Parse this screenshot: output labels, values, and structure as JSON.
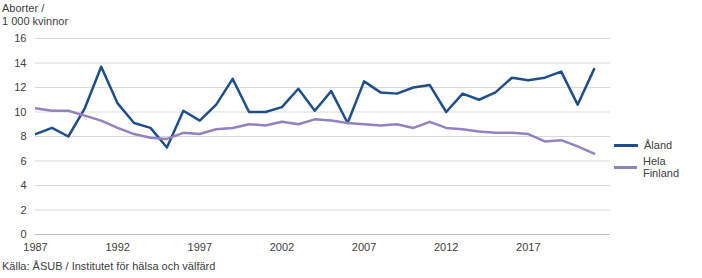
{
  "chart_data": {
    "type": "line",
    "ylabel": "Aborter /\n1 000 kvinnor",
    "caption": "Källa: ÅSUB / Institutet för hälsa och välfärd",
    "x": [
      1987,
      1988,
      1989,
      1990,
      1991,
      1992,
      1993,
      1994,
      1995,
      1996,
      1997,
      1998,
      1999,
      2000,
      2001,
      2002,
      2003,
      2004,
      2005,
      2006,
      2007,
      2008,
      2009,
      2010,
      2011,
      2012,
      2013,
      2014,
      2015,
      2016,
      2017,
      2018,
      2019,
      2020,
      2021
    ],
    "series": [
      {
        "name": "Åland",
        "color": "#1f4e8c",
        "values": [
          8.2,
          8.7,
          8.0,
          10.3,
          13.7,
          10.7,
          9.1,
          8.7,
          7.1,
          10.1,
          9.3,
          10.6,
          12.7,
          10.0,
          10.0,
          10.4,
          11.9,
          10.1,
          11.7,
          9.1,
          12.5,
          11.6,
          11.5,
          12.0,
          12.2,
          10.0,
          11.5,
          11.0,
          11.6,
          12.8,
          12.6,
          12.8,
          13.3,
          10.6,
          13.5
        ]
      },
      {
        "name": "Hela Finland",
        "color": "#9481c0",
        "values": [
          10.3,
          10.1,
          10.1,
          9.7,
          9.3,
          8.7,
          8.2,
          7.9,
          7.8,
          8.3,
          8.2,
          8.6,
          8.7,
          9.0,
          8.9,
          9.2,
          9.0,
          9.4,
          9.3,
          9.1,
          9.0,
          8.9,
          9.0,
          8.7,
          9.2,
          8.7,
          8.6,
          8.4,
          8.3,
          8.3,
          8.2,
          7.6,
          7.7,
          7.2,
          6.6
        ]
      }
    ],
    "xlim": [
      1987,
      2022
    ],
    "xticks": [
      1987,
      1992,
      1997,
      2002,
      2007,
      2012,
      2017
    ],
    "ylim": [
      0,
      16
    ],
    "yticks": [
      0,
      2,
      4,
      6,
      8,
      10,
      12,
      14,
      16
    ],
    "grid": true,
    "legend": "right"
  }
}
